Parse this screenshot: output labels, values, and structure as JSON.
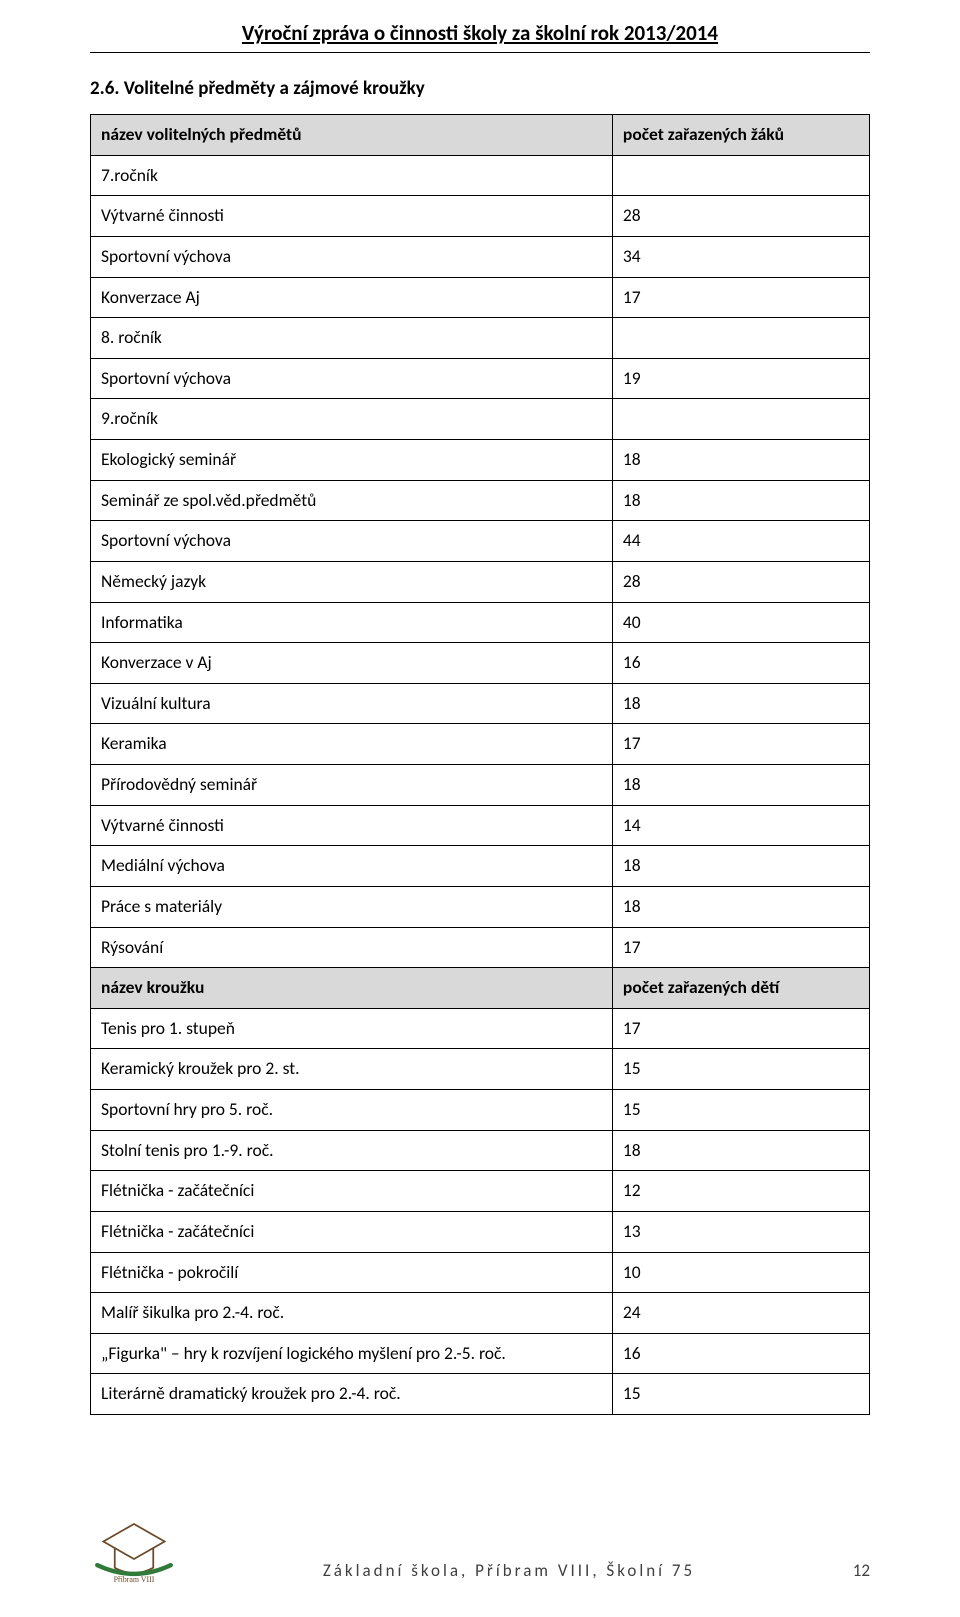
{
  "header": {
    "title": "Výroční zpráva o činnosti školy za školní rok 2013/2014"
  },
  "section": {
    "heading": "2.6.  Volitelné předměty a zájmové kroužky"
  },
  "table1": {
    "header_label": "název volitelných předmětů",
    "header_value": "počet zařazených žáků",
    "groups": [
      {
        "grade": "7.ročník",
        "rows": [
          {
            "label": "Výtvarné činnosti",
            "value": "28"
          },
          {
            "label": "Sportovní výchova",
            "value": "34"
          },
          {
            "label": "Konverzace Aj",
            "value": "17"
          }
        ]
      },
      {
        "grade": "8. ročník",
        "rows": [
          {
            "label": "Sportovní výchova",
            "value": "19"
          }
        ]
      },
      {
        "grade": "9.ročník",
        "rows": [
          {
            "label": "Ekologický seminář",
            "value": "18"
          },
          {
            "label": "Seminář ze spol.věd.předmětů",
            "value": "18"
          },
          {
            "label": "Sportovní výchova",
            "value": "44"
          },
          {
            "label": "Německý jazyk",
            "value": "28"
          },
          {
            "label": "Informatika",
            "value": "40"
          },
          {
            "label": "Konverzace v Aj",
            "value": "16"
          },
          {
            "label": "Vizuální kultura",
            "value": "18"
          },
          {
            "label": "Keramika",
            "value": "17"
          },
          {
            "label": "Přírodovědný seminář",
            "value": "18"
          },
          {
            "label": "Výtvarné činnosti",
            "value": "14"
          },
          {
            "label": "Mediální výchova",
            "value": "18"
          },
          {
            "label": "Práce s materiály",
            "value": "18"
          },
          {
            "label": "Rýsování",
            "value": "17"
          }
        ]
      }
    ]
  },
  "table2": {
    "header_label": "název kroužku",
    "header_value": "počet zařazených dětí",
    "rows": [
      {
        "label": "Tenis pro 1. stupeň",
        "value": "17"
      },
      {
        "label": "Keramický kroužek pro 2. st.",
        "value": "15"
      },
      {
        "label": "Sportovní hry pro 5. roč.",
        "value": "15"
      },
      {
        "label": "Stolní tenis pro 1.-9. roč.",
        "value": "18"
      },
      {
        "label": "Flétnička - začátečníci",
        "value": "12"
      },
      {
        "label": "Flétnička - začátečníci",
        "value": "13"
      },
      {
        "label": "Flétnička - pokročilí",
        "value": "10"
      },
      {
        "label": "Malíř šikulka pro 2.-4. roč.",
        "value": "24"
      },
      {
        "label": "„Figurka\" – hry k rozvíjení logického myšlení pro 2.-5. roč.",
        "value": "16"
      },
      {
        "label": "Literárně dramatický  kroužek pro 2.-4. roč.",
        "value": "15"
      }
    ]
  },
  "footer": {
    "text": "Základní škola, Příbram VIII, Školní 75",
    "page": "12"
  },
  "colors": {
    "header_bg": "#d9d9d9",
    "border": "#000000",
    "text": "#000000",
    "footer_text": "#404040"
  }
}
